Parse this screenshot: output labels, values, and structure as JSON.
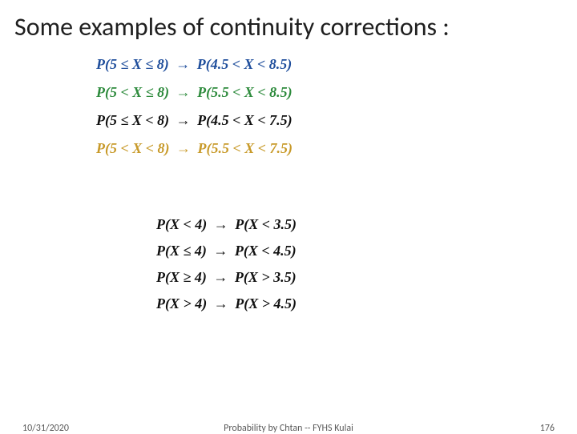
{
  "title": "Some examples of continuity corrections :",
  "colors": {
    "line1": "#1f4e9c",
    "line2": "#2e8b3d",
    "line3": "#111111",
    "line4": "#c89a2a",
    "line5": "#111111",
    "line6": "#111111",
    "line7": "#111111",
    "line8": "#111111"
  },
  "block1": [
    {
      "lhs": "P(5 ≤ X ≤ 8)",
      "rhs": "P(4.5 < X < 8.5)"
    },
    {
      "lhs": "P(5 < X ≤ 8)",
      "rhs": "P(5.5 < X < 8.5)"
    },
    {
      "lhs": "P(5 ≤ X < 8)",
      "rhs": "P(4.5 < X < 7.5)"
    },
    {
      "lhs": "P(5 < X < 8)",
      "rhs": "P(5.5 < X < 7.5)"
    }
  ],
  "block2": [
    {
      "lhs": "P(X < 4)",
      "rhs": "P(X < 3.5)"
    },
    {
      "lhs": "P(X ≤ 4)",
      "rhs": "P(X < 4.5)"
    },
    {
      "lhs": "P(X ≥ 4)",
      "rhs": "P(X > 3.5)"
    },
    {
      "lhs": "P(X > 4)",
      "rhs": "P(X > 4.5)"
    }
  ],
  "footer": {
    "date": "10/31/2020",
    "center": "Probability by Chtan -- FYHS Kulai",
    "page": "176"
  }
}
